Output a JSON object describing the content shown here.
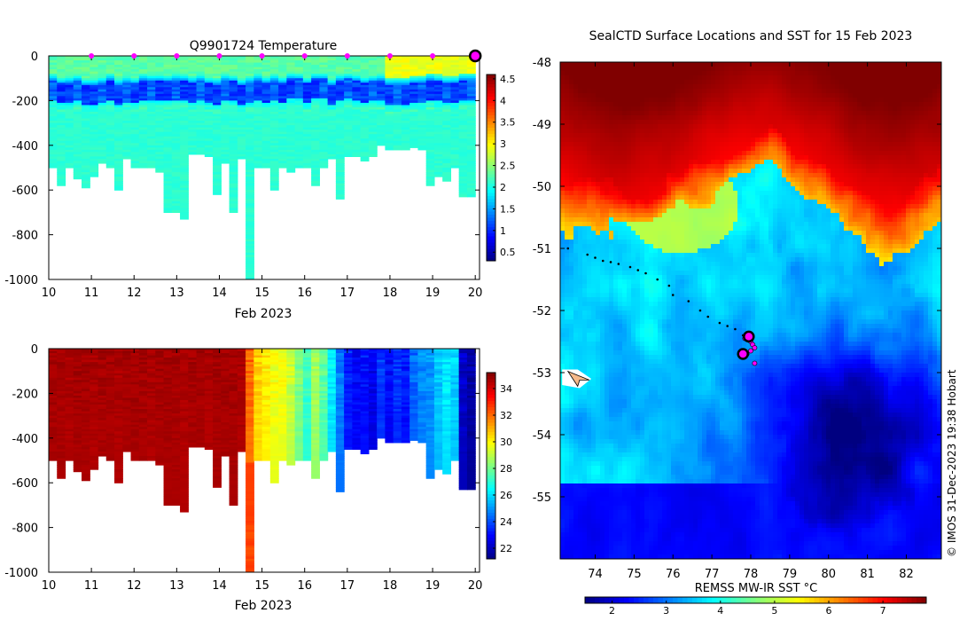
{
  "chart_data": [
    {
      "type": "heatmap",
      "title": "Q9901724  Temperature",
      "xlabel": "Feb 2023",
      "ylabel": "",
      "xlim": [
        10,
        20.1
      ],
      "ylim": [
        -1000,
        0
      ],
      "x_ticks": [
        10,
        11,
        12,
        13,
        14,
        15,
        16,
        17,
        18,
        19,
        20
      ],
      "y_ticks": [
        0,
        -200,
        -400,
        -600,
        -800,
        -1000
      ],
      "colorbar": {
        "min": 0.3,
        "max": 4.6,
        "ticks": [
          0.5,
          1,
          1.5,
          2,
          2.5,
          3,
          3.5,
          4,
          4.5
        ],
        "colormap": "jet"
      },
      "profile_markers": {
        "x": [
          11,
          12,
          13,
          14,
          15,
          16,
          17,
          18,
          19
        ],
        "color": "#ff00ff"
      },
      "latest_marker": {
        "x": 20,
        "y": 0
      },
      "profile_max_depth": [
        500,
        580,
        500,
        550,
        590,
        540,
        480,
        500,
        600,
        460,
        500,
        500,
        500,
        520,
        700,
        700,
        730,
        440,
        440,
        450,
        620,
        480,
        700,
        460,
        1000,
        500,
        500,
        600,
        500,
        520,
        500,
        500,
        580,
        500,
        460,
        640,
        450,
        450,
        470,
        450,
        400,
        420,
        420,
        420,
        410,
        420,
        580,
        540,
        560,
        500,
        630,
        630
      ],
      "temperature_structure": {
        "surface": 2.3,
        "core_min": 0.9,
        "core_depth_range": [
          110,
          200
        ],
        "deep": 2.1
      }
    },
    {
      "type": "heatmap",
      "title": "",
      "xlabel": "Feb 2023",
      "ylabel": "",
      "xlim": [
        10,
        20.1
      ],
      "ylim": [
        -1000,
        0
      ],
      "x_ticks": [
        10,
        11,
        12,
        13,
        14,
        15,
        16,
        17,
        18,
        19,
        20
      ],
      "y_ticks": [
        0,
        -200,
        -400,
        -600,
        -800,
        -1000
      ],
      "colorbar": {
        "min": 21.2,
        "max": 35.2,
        "ticks": [
          22,
          24,
          26,
          28,
          30,
          32,
          34
        ],
        "colormap": "jet"
      },
      "column_values": [
        34.6,
        34.6,
        34.5,
        34.6,
        34.6,
        34.5,
        34.6,
        34.6,
        34.5,
        34.6,
        34.6,
        34.6,
        34.5,
        34.6,
        34.6,
        34.6,
        34.5,
        34.6,
        34.6,
        34.5,
        34.6,
        34.6,
        34.6,
        34.5,
        31.8,
        30.4,
        30.0,
        29.6,
        29.6,
        29.0,
        28.0,
        27.0,
        28.5,
        27.5,
        26.0,
        24.5,
        23.2,
        22.8,
        23.0,
        22.5,
        23.5,
        22.8,
        23.4,
        23.0,
        24.2,
        24.6,
        24.8,
        25.5,
        26.0,
        25.6,
        22.0,
        21.5
      ],
      "note": "same profile depths as temperature panel"
    },
    {
      "type": "heatmap",
      "title": "SealCTD Surface Locations and SST for 15 Feb 2023",
      "xlabel": "",
      "ylabel": "",
      "xlim": [
        73.1,
        82.9
      ],
      "ylim": [
        -56.0,
        -48.0
      ],
      "x_ticks": [
        74,
        75,
        76,
        77,
        78,
        79,
        80,
        81,
        82
      ],
      "y_ticks": [
        -48,
        -49,
        -50,
        -51,
        -52,
        -53,
        -54,
        -55
      ],
      "colorbar": {
        "label": "REMSS MW-IR SST °C",
        "min": 1.5,
        "max": 7.8,
        "ticks": [
          2,
          3,
          4,
          5,
          6,
          7
        ],
        "colormap": "jet",
        "orientation": "horizontal"
      },
      "track": {
        "lon": [
          73.3,
          73.8,
          74.0,
          74.2,
          74.4,
          74.6,
          74.9,
          75.1,
          75.3,
          75.6,
          75.9,
          76.0,
          76.4,
          76.7,
          76.9,
          77.2,
          77.4,
          77.6,
          77.8
        ],
        "lat": [
          -51.0,
          -51.1,
          -51.15,
          -51.2,
          -51.22,
          -51.25,
          -51.3,
          -51.35,
          -51.4,
          -51.5,
          -51.6,
          -51.75,
          -51.85,
          -52.0,
          -52.1,
          -52.2,
          -52.25,
          -52.3,
          -52.4
        ]
      },
      "recent_positions": {
        "lon": [
          77.85,
          77.95,
          78.0,
          78.05,
          78.1,
          77.9,
          78.0,
          78.1
        ],
        "lat": [
          -52.45,
          -52.4,
          -52.5,
          -52.55,
          -52.6,
          -52.7,
          -52.65,
          -52.85
        ]
      },
      "current_position": {
        "lon": 77.8,
        "lat": -52.7
      },
      "map_note": "land outline near 73.4E, -53.1",
      "credit": "© IMOS 31-Dec-2023 19:38 Hobart"
    }
  ]
}
